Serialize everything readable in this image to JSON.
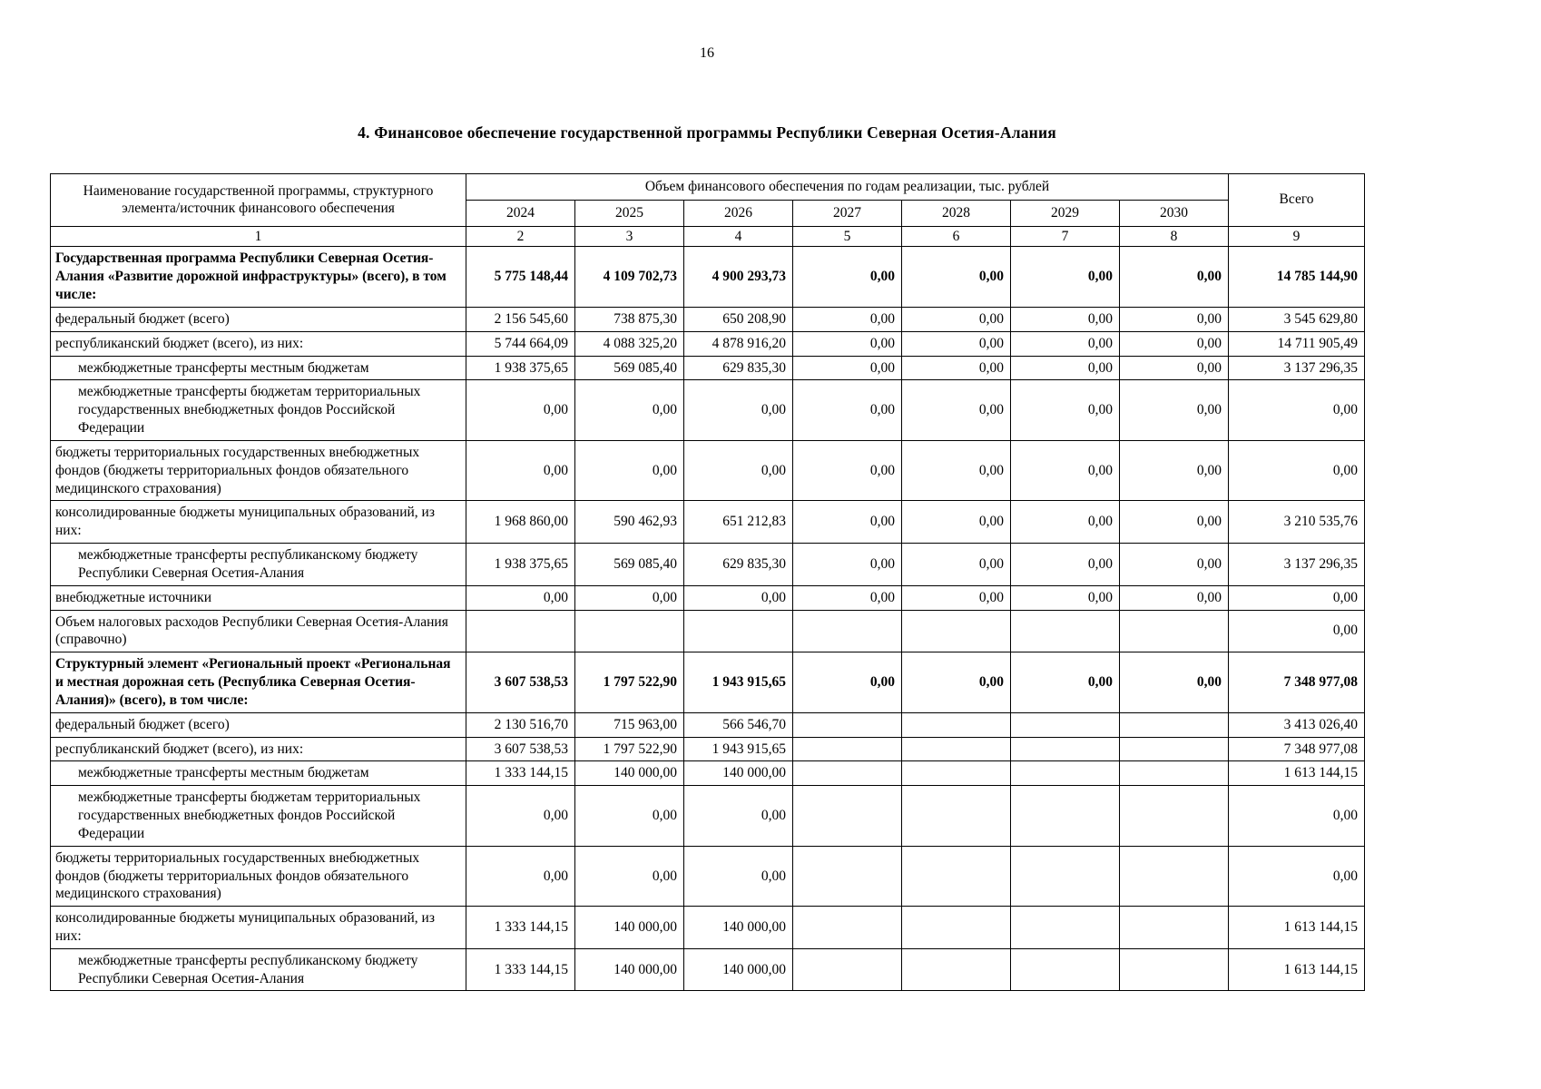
{
  "page": {
    "number": "16",
    "title": "4. Финансовое обеспечение государственной программы Республики Северная Осетия-Алания"
  },
  "table": {
    "header": {
      "name_col": "Наименование государственной программы, структурного элемента/источник финансового обеспечения",
      "years_group": "Объем финансового обеспечения по годам реализации, тыс. рублей",
      "years": [
        "2024",
        "2025",
        "2026",
        "2027",
        "2028",
        "2029",
        "2030"
      ],
      "total_col": "Всего",
      "col_numbers": [
        "1",
        "2",
        "3",
        "4",
        "5",
        "6",
        "7",
        "8",
        "9"
      ]
    },
    "rows": [
      {
        "name": "Государственная программа Республики Северная Осетия-Алания «Развитие дорожной инфраструктуры» (всего), в том числе:",
        "bold": true,
        "indent": false,
        "values": [
          "5 775 148,44",
          "4 109 702,73",
          "4 900 293,73",
          "0,00",
          "0,00",
          "0,00",
          "0,00"
        ],
        "total": "14 785 144,90"
      },
      {
        "name": "федеральный бюджет (всего)",
        "bold": false,
        "indent": false,
        "values": [
          "2 156 545,60",
          "738 875,30",
          "650 208,90",
          "0,00",
          "0,00",
          "0,00",
          "0,00"
        ],
        "total": "3 545 629,80"
      },
      {
        "name": "республиканский бюджет (всего), из них:",
        "bold": false,
        "indent": false,
        "values": [
          "5 744 664,09",
          "4 088 325,20",
          "4 878 916,20",
          "0,00",
          "0,00",
          "0,00",
          "0,00"
        ],
        "total": "14 711 905,49"
      },
      {
        "name": "межбюджетные трансферты местным бюджетам",
        "bold": false,
        "indent": true,
        "values": [
          "1 938 375,65",
          "569 085,40",
          "629 835,30",
          "0,00",
          "0,00",
          "0,00",
          "0,00"
        ],
        "total": "3 137 296,35"
      },
      {
        "name": "межбюджетные трансферты бюджетам территориальных государственных внебюджетных фондов Российской Федерации",
        "bold": false,
        "indent": true,
        "values": [
          "0,00",
          "0,00",
          "0,00",
          "0,00",
          "0,00",
          "0,00",
          "0,00"
        ],
        "total": "0,00"
      },
      {
        "name": "бюджеты территориальных государственных внебюджетных фондов (бюджеты территориальных фондов обязательного медицинского страхования)",
        "bold": false,
        "indent": false,
        "values": [
          "0,00",
          "0,00",
          "0,00",
          "0,00",
          "0,00",
          "0,00",
          "0,00"
        ],
        "total": "0,00"
      },
      {
        "name": "консолидированные бюджеты муниципальных образований, из них:",
        "bold": false,
        "indent": false,
        "values": [
          "1 968 860,00",
          "590 462,93",
          "651 212,83",
          "0,00",
          "0,00",
          "0,00",
          "0,00"
        ],
        "total": "3 210 535,76"
      },
      {
        "name": "межбюджетные трансферты республиканскому бюджету Республики Северная Осетия-Алания",
        "bold": false,
        "indent": true,
        "values": [
          "1 938 375,65",
          "569 085,40",
          "629 835,30",
          "0,00",
          "0,00",
          "0,00",
          "0,00"
        ],
        "total": "3 137 296,35"
      },
      {
        "name": "внебюджетные источники",
        "bold": false,
        "indent": false,
        "values": [
          "0,00",
          "0,00",
          "0,00",
          "0,00",
          "0,00",
          "0,00",
          "0,00"
        ],
        "total": "0,00"
      },
      {
        "name": "Объем налоговых расходов Республики Северная Осетия-Алания (справочно)",
        "bold": false,
        "indent": false,
        "values": [
          "",
          "",
          "",
          "",
          "",
          "",
          ""
        ],
        "total": "0,00"
      },
      {
        "name": "Структурный элемент «Региональный проект «Региональная и местная дорожная сеть (Республика Северная Осетия-Алания)» (всего), в том числе:",
        "bold": true,
        "indent": false,
        "values": [
          "3 607 538,53",
          "1 797 522,90",
          "1 943 915,65",
          "0,00",
          "0,00",
          "0,00",
          "0,00"
        ],
        "total": "7 348 977,08"
      },
      {
        "name": "федеральный бюджет (всего)",
        "bold": false,
        "indent": false,
        "values": [
          "2 130 516,70",
          "715 963,00",
          "566 546,70",
          "",
          "",
          "",
          ""
        ],
        "total": "3 413 026,40"
      },
      {
        "name": "республиканский бюджет (всего), из них:",
        "bold": false,
        "indent": false,
        "values": [
          "3 607 538,53",
          "1 797 522,90",
          "1 943 915,65",
          "",
          "",
          "",
          ""
        ],
        "total": "7 348 977,08"
      },
      {
        "name": "межбюджетные трансферты местным бюджетам",
        "bold": false,
        "indent": true,
        "values": [
          "1 333 144,15",
          "140 000,00",
          "140 000,00",
          "",
          "",
          "",
          ""
        ],
        "total": "1 613 144,15"
      },
      {
        "name": "межбюджетные трансферты бюджетам территориальных государственных внебюджетных фондов Российской Федерации",
        "bold": false,
        "indent": true,
        "values": [
          "0,00",
          "0,00",
          "0,00",
          "",
          "",
          "",
          ""
        ],
        "total": "0,00"
      },
      {
        "name": "бюджеты территориальных государственных внебюджетных фондов (бюджеты территориальных фондов обязательного медицинского страхования)",
        "bold": false,
        "indent": false,
        "values": [
          "0,00",
          "0,00",
          "0,00",
          "",
          "",
          "",
          ""
        ],
        "total": "0,00"
      },
      {
        "name": "консолидированные бюджеты муниципальных образований, из них:",
        "bold": false,
        "indent": false,
        "values": [
          "1 333 144,15",
          "140 000,00",
          "140 000,00",
          "",
          "",
          "",
          ""
        ],
        "total": "1 613 144,15"
      },
      {
        "name": "межбюджетные трансферты республиканскому бюджету Республики Северная Осетия-Алания",
        "bold": false,
        "indent": true,
        "values": [
          "1 333 144,15",
          "140 000,00",
          "140 000,00",
          "",
          "",
          "",
          ""
        ],
        "total": "1 613 144,15"
      }
    ]
  }
}
